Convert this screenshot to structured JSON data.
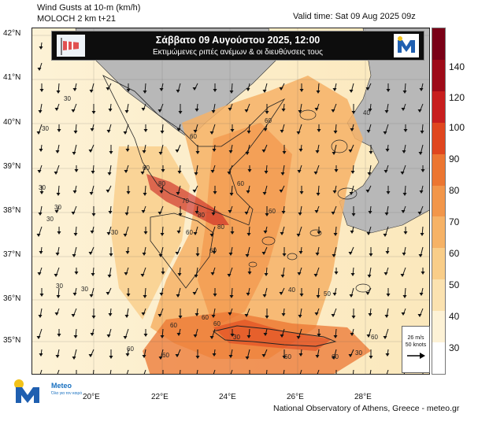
{
  "header": {
    "title_line1": "Wind Gusts at 10-m (km/h)",
    "title_line2": "MOLOCH 2 km t+21",
    "valid_time": "Valid time: Sat 09 Aug 2025 09z"
  },
  "banner": {
    "title": "Σάββατο 09 Αυγούστου 2025, 12:00",
    "subtitle": "Εκτιμώμενες ριπές ανέμων & οι διευθύνσεις τους"
  },
  "axes": {
    "lat_labels": [
      "42°N",
      "41°N",
      "40°N",
      "39°N",
      "38°N",
      "37°N",
      "36°N",
      "35°N"
    ],
    "lon_labels": [
      "20°E",
      "22°E",
      "24°E",
      "26°E",
      "28°E"
    ]
  },
  "colorbar": {
    "labels": [
      "140",
      "120",
      "100",
      "90",
      "80",
      "70",
      "60",
      "50",
      "40",
      "30"
    ],
    "colors": [
      "#7a0016",
      "#9e0a18",
      "#c81e1e",
      "#e0461e",
      "#ec7632",
      "#f2964a",
      "#f6b266",
      "#f9cd88",
      "#fbe2b0",
      "#fdf2d6",
      "#ffffff"
    ]
  },
  "map_labels": {
    "contour_value_labels": [
      "30",
      "30",
      "30",
      "30",
      "30",
      "30",
      "30",
      "30",
      "30",
      "30",
      "40",
      "40",
      "50",
      "60",
      "60",
      "60",
      "60",
      "60",
      "60",
      "60",
      "60",
      "60",
      "60",
      "60",
      "60",
      "60",
      "60",
      "60",
      "70",
      "80",
      "80",
      "80"
    ]
  },
  "legend": {
    "speed_ms": "26 m/s",
    "speed_knots": "50 knots"
  },
  "footer": {
    "brand": "Meteo",
    "brand_sub": "Όλα για τον καιρό",
    "credit": "National Observatory of Athens, Greece - meteo.gr"
  }
}
